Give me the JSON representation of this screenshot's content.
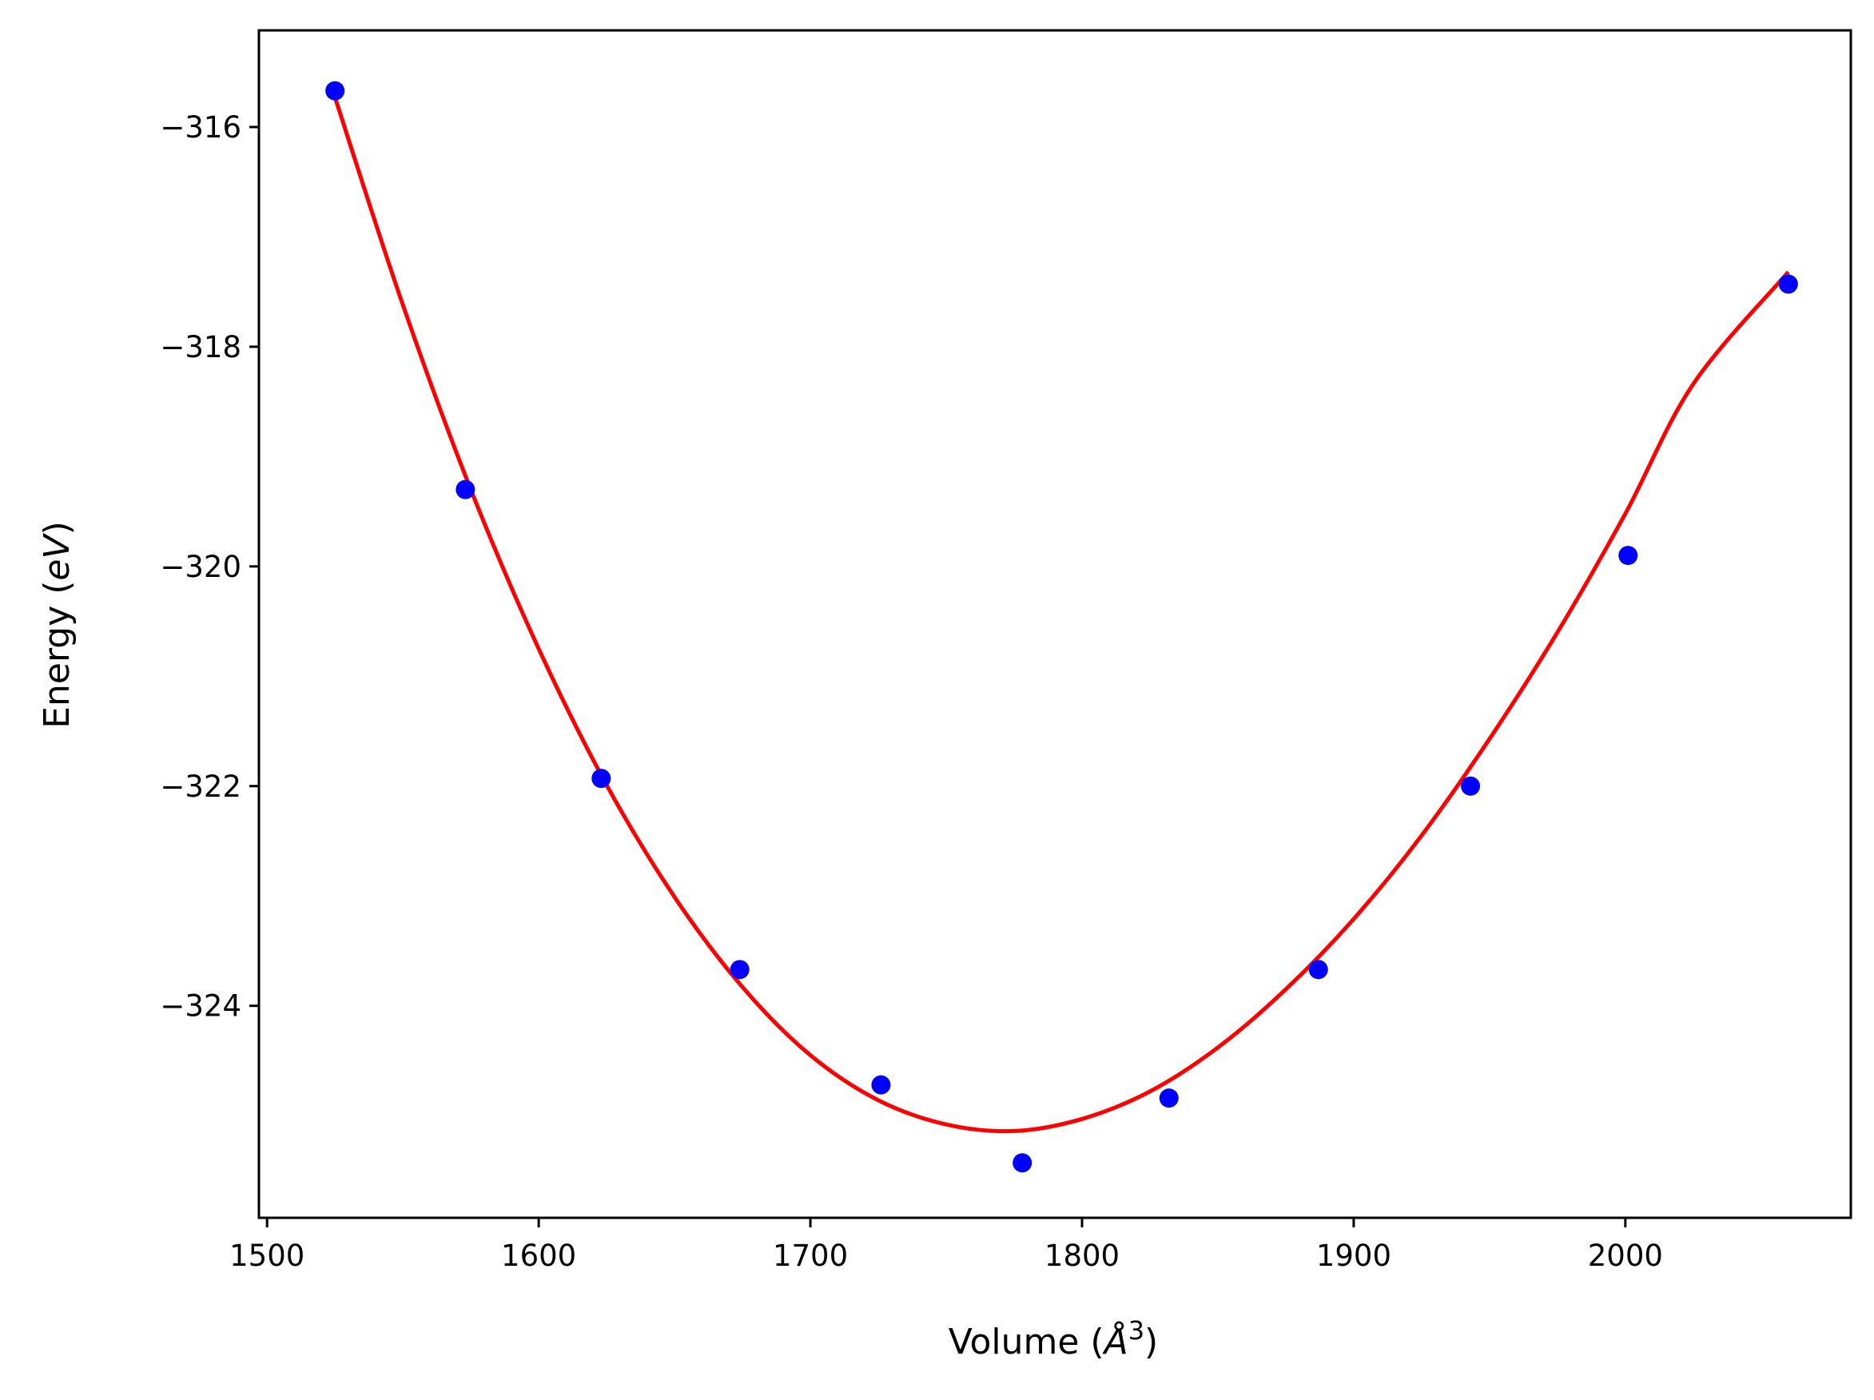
{
  "chart_data": {
    "type": "scatter",
    "xlabel": "Volume",
    "xlabel_unit": "Å",
    "xlabel_unit_exponent": "3",
    "ylabel": "Energy",
    "ylabel_unit": "eV",
    "xlim": [
      1497,
      2083
    ],
    "ylim": [
      -325.93,
      -315.12
    ],
    "x_ticks": [
      1500,
      1600,
      1700,
      1800,
      1900,
      2000
    ],
    "y_ticks": [
      -316,
      -318,
      -320,
      -322,
      -324
    ],
    "grid": false,
    "legend": "none",
    "series": [
      {
        "kind": "points",
        "color": "#0000ff",
        "x": [
          1525,
          1573,
          1623,
          1674,
          1726,
          1778,
          1832,
          1887,
          1943,
          2001,
          2060
        ],
        "y": [
          -315.67,
          -319.3,
          -321.93,
          -323.67,
          -324.72,
          -325.43,
          -324.84,
          -323.67,
          -322.0,
          -319.9,
          -317.43
        ]
      },
      {
        "kind": "fit-curve",
        "color": "#ff0000",
        "x": [
          1525,
          1550,
          1575,
          1600,
          1625,
          1650,
          1675,
          1700,
          1725,
          1750,
          1775,
          1800,
          1825,
          1850,
          1875,
          1900,
          1925,
          1950,
          1975,
          2000,
          2025,
          2060
        ],
        "y": [
          -315.73,
          -317.62,
          -319.3,
          -320.75,
          -321.99,
          -323.01,
          -323.83,
          -324.45,
          -324.86,
          -325.08,
          -325.14,
          -325.03,
          -324.78,
          -324.38,
          -323.85,
          -323.21,
          -322.45,
          -321.57,
          -320.6,
          -319.52,
          -318.34,
          -317.32
        ]
      }
    ]
  }
}
